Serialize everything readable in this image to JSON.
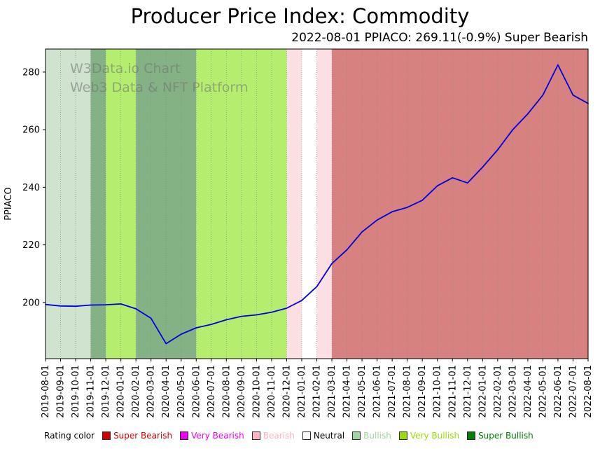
{
  "header": {
    "title": "Producer Price Index: Commodity",
    "subtitle": "2022-08-01 PPIACO: 269.11(-0.9%) Super Bearish"
  },
  "watermark": {
    "line1": "W3Data.io Chart",
    "line2": "Web3 Data & NFT Platform"
  },
  "legend": {
    "label": "Rating color",
    "items": [
      {
        "label": "Super Bearish",
        "color": "#d40000",
        "swatch": "#d40000"
      },
      {
        "label": "Very Bearish",
        "color": "#ee00ee",
        "swatch": "#ee00ee"
      },
      {
        "label": "Bearish",
        "color": "#ffb3c0",
        "swatch": "#ffb3c0"
      },
      {
        "label": "Neutral",
        "color": "#000000",
        "swatch": "#ffffff"
      },
      {
        "label": "Bullish",
        "color": "#9fd49f",
        "swatch": "#9fd49f"
      },
      {
        "label": "Very Bullish",
        "color": "#99dd00",
        "swatch": "#99dd00"
      },
      {
        "label": "Super Bullish",
        "color": "#008000",
        "swatch": "#008000"
      }
    ]
  },
  "chart_data": {
    "type": "line",
    "title": "Producer Price Index: Commodity",
    "subtitle": "2022-08-01 PPIACO: 269.11(-0.9%) Super Bearish",
    "xlabel": "",
    "ylabel": "PPIACO",
    "ylim": [
      180.5,
      288
    ],
    "yticks": [
      200,
      220,
      240,
      260,
      280
    ],
    "grid": "vertical-dotted",
    "line_color": "#0000dd",
    "x": [
      "2019-08-01",
      "2019-09-01",
      "2019-10-01",
      "2019-11-01",
      "2019-12-01",
      "2020-01-01",
      "2020-02-01",
      "2020-03-01",
      "2020-04-01",
      "2020-05-01",
      "2020-06-01",
      "2020-07-01",
      "2020-08-01",
      "2020-09-01",
      "2020-10-01",
      "2020-11-01",
      "2020-12-01",
      "2021-01-01",
      "2021-02-01",
      "2021-03-01",
      "2021-04-01",
      "2021-05-01",
      "2021-06-01",
      "2021-07-01",
      "2021-08-01",
      "2021-09-01",
      "2021-10-01",
      "2021-11-01",
      "2021-12-01",
      "2022-01-01",
      "2022-02-01",
      "2022-03-01",
      "2022-04-01",
      "2022-05-01",
      "2022-06-01",
      "2022-07-01",
      "2022-08-01"
    ],
    "values": [
      199.3,
      198.8,
      198.7,
      199.1,
      199.2,
      199.5,
      197.8,
      194.5,
      185.7,
      189.0,
      191.2,
      192.4,
      194.0,
      195.2,
      195.7,
      196.6,
      198.0,
      200.7,
      205.5,
      213.5,
      218.3,
      224.5,
      228.6,
      231.5,
      233.0,
      235.5,
      240.5,
      243.3,
      241.5,
      247.0,
      253.0,
      260.0,
      265.5,
      272.0,
      282.5,
      272.0,
      269.11
    ],
    "last_point": {
      "date": "2022-08-01",
      "value": 269.11,
      "change_pct": -0.9,
      "rating": "Super Bearish"
    },
    "bands": [
      {
        "start": "2019-08-01",
        "end": "2019-11-01",
        "rating": "Bullish"
      },
      {
        "start": "2019-11-01",
        "end": "2019-12-01",
        "rating": "Super Bullish"
      },
      {
        "start": "2019-12-01",
        "end": "2020-02-01",
        "rating": "Very Bullish"
      },
      {
        "start": "2020-02-01",
        "end": "2020-06-01",
        "rating": "Super Bullish"
      },
      {
        "start": "2020-06-01",
        "end": "2020-12-01",
        "rating": "Very Bullish"
      },
      {
        "start": "2020-12-01",
        "end": "2021-01-01",
        "rating": "Bearish"
      },
      {
        "start": "2021-01-01",
        "end": "2021-02-01",
        "rating": "Neutral"
      },
      {
        "start": "2021-02-01",
        "end": "2021-03-01",
        "rating": "Bearish"
      },
      {
        "start": "2021-03-01",
        "end": "2022-08-01",
        "rating": "Super Bearish"
      }
    ],
    "band_colors": {
      "Super Bearish": "#d88181",
      "Very Bearish": "#f09bf0",
      "Bearish": "#fbdfe3",
      "Neutral": "#ffffff",
      "Bullish": "#cfe3cf",
      "Very Bullish": "#b5ee6e",
      "Super Bullish": "#85b285"
    }
  }
}
